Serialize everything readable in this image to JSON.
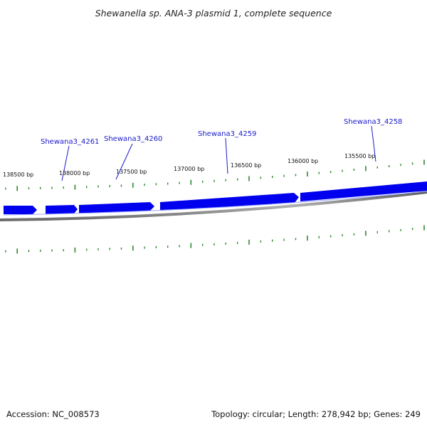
{
  "title": "Shewanella sp. ANA-3 plasmid 1, complete sequence",
  "tick_labels": [
    "138500 bp",
    "138000 bp",
    "137500 bp",
    "137000 bp",
    "136500 bp",
    "136000 bp",
    "135500 bp"
  ],
  "genes": [
    {
      "label": "Shewana3_4261",
      "start_bp": 137940
    },
    {
      "label": "Shewana3_4260",
      "start_bp": 137450
    },
    {
      "label": "Shewana3_4259",
      "start_bp": 136560
    },
    {
      "label": "Shewana3_4258",
      "start_bp": 135450
    }
  ],
  "colors": {
    "gene": "#0000ee",
    "tick": "#2a8a2a",
    "backbone": "#888888",
    "callout": "#1a1acc"
  },
  "footer": {
    "accession": "Accession: NC_008573",
    "summary": "Topology: circular; Length: 278,942 bp; Genes: 249"
  }
}
